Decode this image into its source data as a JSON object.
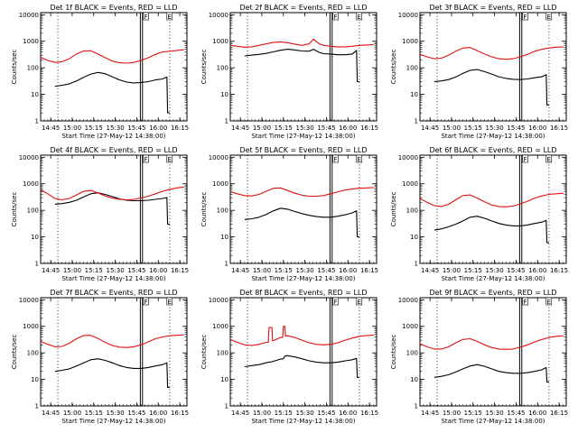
{
  "colors": {
    "events": "#000000",
    "lld": "#e01010",
    "axis": "#000000",
    "background": "#ffffff"
  },
  "common": {
    "ylabel": "Counts/sec",
    "xlabel": "Start Time (27-May-12 14:38:00)",
    "x_tick_labels": [
      "14:45",
      "15:00",
      "15:15",
      "15:30",
      "15:45",
      "16:00",
      "16:15"
    ],
    "x_tick_minutes": [
      7,
      22,
      37,
      52,
      67,
      82,
      97
    ],
    "y_tick_labels": [
      "1",
      "10",
      "100",
      "1000",
      "10000"
    ],
    "y_tick_values": [
      1,
      10,
      100,
      1000,
      10000
    ],
    "xlim_minutes": [
      0,
      102
    ],
    "ylim": [
      1,
      12000
    ],
    "y_scale": "log"
  },
  "chart_data": [
    {
      "type": "line",
      "title": "Det 1f BLACK = Events, RED = LLD",
      "markers": {
        "dotted_minutes": [
          12,
          90
        ],
        "double_line_minutes": [
          69.5,
          71
        ],
        "box_labels": [
          {
            "text": "F",
            "minute": 71.5
          },
          {
            "text": "E",
            "minute": 88
          }
        ]
      },
      "series": [
        {
          "name": "Events",
          "x": [
            10,
            15,
            20,
            25,
            30,
            35,
            40,
            45,
            50,
            55,
            60,
            65,
            70,
            75,
            80,
            85,
            88,
            88.5,
            90
          ],
          "y": [
            20,
            22,
            25,
            32,
            44,
            58,
            67,
            60,
            46,
            35,
            29,
            27,
            28,
            30,
            35,
            38,
            45,
            2,
            2
          ]
        },
        {
          "name": "LLD",
          "x": [
            0,
            5,
            10,
            15,
            20,
            25,
            30,
            35,
            40,
            45,
            50,
            55,
            60,
            65,
            70,
            75,
            80,
            85,
            90,
            95,
            100
          ],
          "y": [
            250,
            190,
            160,
            170,
            220,
            330,
            430,
            440,
            330,
            240,
            180,
            155,
            150,
            160,
            190,
            240,
            320,
            400,
            420,
            450,
            480
          ]
        }
      ]
    },
    {
      "type": "line",
      "title": "Det 2f BLACK = Events, RED = LLD",
      "markers": {
        "dotted_minutes": [
          12,
          90
        ],
        "double_line_minutes": [
          69.5,
          71
        ],
        "box_labels": [
          {
            "text": "F",
            "minute": 71.5
          },
          {
            "text": "E",
            "minute": 88
          }
        ]
      },
      "series": [
        {
          "name": "Events",
          "x": [
            10,
            15,
            20,
            25,
            30,
            35,
            40,
            45,
            50,
            55,
            58,
            62,
            65,
            70,
            75,
            80,
            85,
            88,
            88.5,
            90
          ],
          "y": [
            280,
            300,
            320,
            350,
            400,
            460,
            500,
            470,
            430,
            420,
            500,
            380,
            340,
            330,
            310,
            310,
            330,
            450,
            30,
            30
          ]
        },
        {
          "name": "LLD",
          "x": [
            0,
            5,
            10,
            15,
            20,
            25,
            30,
            35,
            40,
            45,
            50,
            55,
            58,
            62,
            65,
            70,
            75,
            80,
            85,
            90,
            95,
            100
          ],
          "y": [
            700,
            650,
            600,
            620,
            700,
            800,
            900,
            950,
            880,
            780,
            700,
            800,
            1200,
            800,
            700,
            650,
            620,
            620,
            650,
            700,
            720,
            760
          ]
        }
      ]
    },
    {
      "type": "line",
      "title": "Det 3f BLACK = Events, RED = LLD",
      "markers": {
        "dotted_minutes": [
          12,
          90
        ],
        "double_line_minutes": [
          69.5,
          71
        ],
        "box_labels": [
          {
            "text": "F",
            "minute": 71.5
          },
          {
            "text": "E",
            "minute": 88
          }
        ]
      },
      "series": [
        {
          "name": "Events",
          "x": [
            10,
            15,
            20,
            25,
            30,
            35,
            40,
            45,
            50,
            55,
            60,
            65,
            70,
            75,
            80,
            85,
            88,
            88.5,
            90
          ],
          "y": [
            30,
            32,
            36,
            45,
            62,
            80,
            86,
            72,
            58,
            46,
            40,
            37,
            36,
            38,
            42,
            46,
            55,
            4,
            4
          ]
        },
        {
          "name": "LLD",
          "x": [
            0,
            5,
            10,
            15,
            20,
            25,
            30,
            35,
            40,
            45,
            50,
            55,
            60,
            65,
            70,
            75,
            80,
            85,
            90,
            95,
            100
          ],
          "y": [
            320,
            260,
            220,
            230,
            300,
            420,
            560,
            580,
            440,
            330,
            260,
            220,
            210,
            220,
            260,
            320,
            420,
            500,
            560,
            600,
            620
          ]
        }
      ]
    },
    {
      "type": "line",
      "title": "Det 4f BLACK = Events, RED = LLD",
      "markers": {
        "dotted_minutes": [
          12,
          90
        ],
        "double_line_minutes": [
          69.5,
          71
        ],
        "box_labels": [
          {
            "text": "F",
            "minute": 71.5
          },
          {
            "text": "E",
            "minute": 88
          }
        ]
      },
      "series": [
        {
          "name": "Events",
          "x": [
            10,
            15,
            20,
            25,
            30,
            35,
            40,
            45,
            50,
            55,
            60,
            65,
            70,
            75,
            80,
            85,
            88,
            88.5,
            90
          ],
          "y": [
            170,
            180,
            200,
            240,
            320,
            420,
            460,
            400,
            330,
            270,
            240,
            230,
            230,
            240,
            260,
            280,
            300,
            30,
            30
          ]
        },
        {
          "name": "LLD",
          "x": [
            0,
            5,
            10,
            15,
            20,
            25,
            30,
            35,
            40,
            45,
            50,
            55,
            60,
            65,
            70,
            75,
            80,
            85,
            90,
            95,
            100
          ],
          "y": [
            600,
            420,
            280,
            250,
            280,
            380,
            520,
            560,
            450,
            350,
            290,
            260,
            250,
            260,
            290,
            340,
            420,
            520,
            620,
            700,
            760
          ]
        }
      ]
    },
    {
      "type": "line",
      "title": "Det 5f BLACK = Events, RED = LLD",
      "markers": {
        "dotted_minutes": [
          12,
          90
        ],
        "double_line_minutes": [
          69.5,
          71
        ],
        "box_labels": [
          {
            "text": "F",
            "minute": 71.5
          },
          {
            "text": "E",
            "minute": 88
          }
        ]
      },
      "series": [
        {
          "name": "Events",
          "x": [
            10,
            15,
            20,
            25,
            30,
            35,
            40,
            45,
            50,
            55,
            60,
            65,
            70,
            75,
            80,
            85,
            88,
            88.5,
            90
          ],
          "y": [
            45,
            48,
            55,
            70,
            95,
            120,
            110,
            90,
            75,
            65,
            58,
            55,
            55,
            60,
            68,
            80,
            95,
            10,
            10
          ]
        },
        {
          "name": "LLD",
          "x": [
            0,
            5,
            10,
            15,
            20,
            25,
            30,
            35,
            40,
            45,
            50,
            55,
            60,
            65,
            70,
            75,
            80,
            85,
            90,
            95,
            100
          ],
          "y": [
            500,
            420,
            360,
            350,
            400,
            520,
            680,
            700,
            560,
            440,
            370,
            340,
            340,
            360,
            420,
            500,
            580,
            640,
            680,
            700,
            720
          ]
        }
      ]
    },
    {
      "type": "line",
      "title": "Det 6f BLACK = Events, RED = LLD",
      "markers": {
        "dotted_minutes": [
          12,
          90
        ],
        "double_line_minutes": [
          69.5,
          71
        ],
        "box_labels": [
          {
            "text": "F",
            "minute": 71.5
          },
          {
            "text": "E",
            "minute": 88
          }
        ]
      },
      "series": [
        {
          "name": "Events",
          "x": [
            10,
            15,
            20,
            25,
            30,
            35,
            40,
            45,
            50,
            55,
            60,
            65,
            70,
            75,
            80,
            85,
            88,
            88.5,
            90
          ],
          "y": [
            18,
            20,
            24,
            30,
            40,
            55,
            60,
            50,
            40,
            32,
            28,
            26,
            26,
            28,
            32,
            36,
            42,
            6,
            6
          ]
        },
        {
          "name": "LLD",
          "x": [
            0,
            5,
            10,
            15,
            20,
            25,
            30,
            35,
            40,
            45,
            50,
            55,
            60,
            65,
            70,
            75,
            80,
            85,
            90,
            95,
            100
          ],
          "y": [
            280,
            200,
            150,
            140,
            170,
            250,
            360,
            380,
            290,
            210,
            160,
            140,
            135,
            145,
            175,
            220,
            290,
            350,
            400,
            420,
            440
          ]
        }
      ]
    },
    {
      "type": "line",
      "title": "Det 7f BLACK = Events, RED = LLD",
      "markers": {
        "dotted_minutes": [
          12,
          90
        ],
        "double_line_minutes": [
          69.5,
          71
        ],
        "box_labels": [
          {
            "text": "F",
            "minute": 71.5
          },
          {
            "text": "E",
            "minute": 88
          }
        ]
      },
      "series": [
        {
          "name": "Events",
          "x": [
            10,
            15,
            20,
            25,
            30,
            35,
            40,
            45,
            50,
            55,
            60,
            65,
            70,
            75,
            80,
            85,
            88,
            88.5,
            90
          ],
          "y": [
            20,
            22,
            25,
            32,
            42,
            55,
            60,
            52,
            42,
            33,
            28,
            26,
            26,
            28,
            32,
            36,
            42,
            5,
            5
          ]
        },
        {
          "name": "LLD",
          "x": [
            0,
            5,
            10,
            15,
            20,
            25,
            30,
            35,
            40,
            45,
            50,
            55,
            60,
            65,
            70,
            75,
            80,
            85,
            90,
            95,
            100
          ],
          "y": [
            270,
            210,
            170,
            175,
            230,
            340,
            450,
            460,
            350,
            250,
            190,
            165,
            160,
            170,
            200,
            260,
            340,
            400,
            440,
            460,
            480
          ]
        }
      ]
    },
    {
      "type": "line",
      "title": "Det 8f BLACK = Events, RED = LLD",
      "markers": {
        "dotted_minutes": [
          12,
          90
        ],
        "double_line_minutes": [
          69.5,
          71
        ],
        "box_labels": [
          {
            "text": "F",
            "minute": 71.5
          },
          {
            "text": "E",
            "minute": 88
          }
        ]
      },
      "series": [
        {
          "name": "Events",
          "x": [
            10,
            15,
            20,
            25,
            27,
            28,
            30,
            35,
            37,
            38,
            40,
            45,
            50,
            55,
            60,
            65,
            70,
            75,
            80,
            85,
            88,
            88.5,
            90
          ],
          "y": [
            30,
            33,
            36,
            42,
            45,
            45,
            48,
            58,
            60,
            75,
            78,
            70,
            60,
            50,
            45,
            42,
            42,
            45,
            50,
            55,
            62,
            12,
            12
          ]
        },
        {
          "name": "LLD",
          "x": [
            0,
            5,
            10,
            15,
            20,
            25,
            26.5,
            27,
            29,
            29.5,
            35,
            36.5,
            37,
            38,
            38.5,
            40,
            45,
            50,
            55,
            60,
            65,
            70,
            75,
            80,
            85,
            90,
            95,
            100
          ],
          "y": [
            320,
            250,
            200,
            190,
            210,
            250,
            250,
            900,
            900,
            280,
            380,
            380,
            1000,
            1000,
            420,
            440,
            380,
            300,
            240,
            210,
            200,
            210,
            240,
            300,
            360,
            420,
            450,
            470
          ]
        }
      ]
    },
    {
      "type": "line",
      "title": "Det 9f BLACK = Events, RED = LLD",
      "markers": {
        "dotted_minutes": [
          12,
          90
        ],
        "double_line_minutes": [
          69.5,
          71
        ],
        "box_labels": [
          {
            "text": "F",
            "minute": 71.5
          },
          {
            "text": "E",
            "minute": 88
          }
        ]
      },
      "series": [
        {
          "name": "Events",
          "x": [
            10,
            15,
            20,
            25,
            30,
            35,
            40,
            45,
            50,
            55,
            60,
            65,
            70,
            75,
            80,
            85,
            88,
            88.5,
            90
          ],
          "y": [
            12,
            13,
            15,
            19,
            25,
            32,
            36,
            31,
            25,
            20,
            18,
            17,
            17,
            18,
            20,
            23,
            28,
            8,
            8
          ]
        },
        {
          "name": "LLD",
          "x": [
            0,
            5,
            10,
            15,
            20,
            25,
            30,
            35,
            40,
            45,
            50,
            55,
            60,
            65,
            70,
            75,
            80,
            85,
            90,
            95,
            100
          ],
          "y": [
            220,
            170,
            140,
            140,
            170,
            240,
            320,
            340,
            270,
            200,
            160,
            140,
            135,
            140,
            165,
            200,
            260,
            320,
            380,
            420,
            440
          ]
        }
      ]
    }
  ]
}
